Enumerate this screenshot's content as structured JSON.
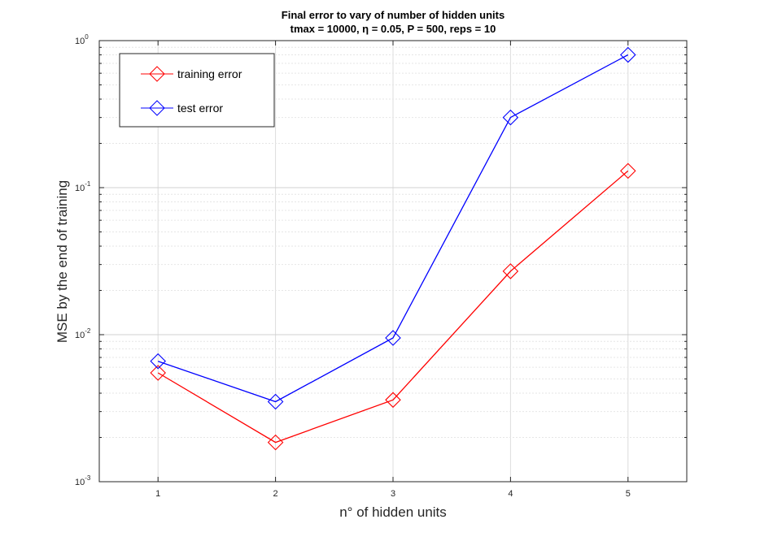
{
  "chart_data": {
    "type": "line",
    "title_line1": "Final error to vary of number of hidden units",
    "title_line2": "tmax = 10000, η = 0.05, P = 500, reps = 10",
    "xlabel": "n° of hidden units",
    "ylabel": "MSE by the end of training",
    "x": [
      1,
      2,
      3,
      4,
      5
    ],
    "xlim": [
      0.5,
      5.5
    ],
    "ylim": [
      0.001,
      1
    ],
    "yscale": "log",
    "grid": true,
    "legend_position": "top-left",
    "x_ticks": [
      "1",
      "2",
      "3",
      "4",
      "5"
    ],
    "y_ticks": [
      {
        "value": 0.001,
        "base": "10",
        "exp": "-3"
      },
      {
        "value": 0.01,
        "base": "10",
        "exp": "-2"
      },
      {
        "value": 0.1,
        "base": "10",
        "exp": "-1"
      },
      {
        "value": 1,
        "base": "10",
        "exp": "0"
      }
    ],
    "series": [
      {
        "name": "training error",
        "color": "#ff0000",
        "marker": "diamond",
        "values": [
          0.0055,
          0.00185,
          0.0036,
          0.027,
          0.13
        ]
      },
      {
        "name": "test error",
        "color": "#0000ff",
        "marker": "diamond",
        "values": [
          0.0066,
          0.0035,
          0.0095,
          0.3,
          0.8
        ]
      }
    ]
  }
}
